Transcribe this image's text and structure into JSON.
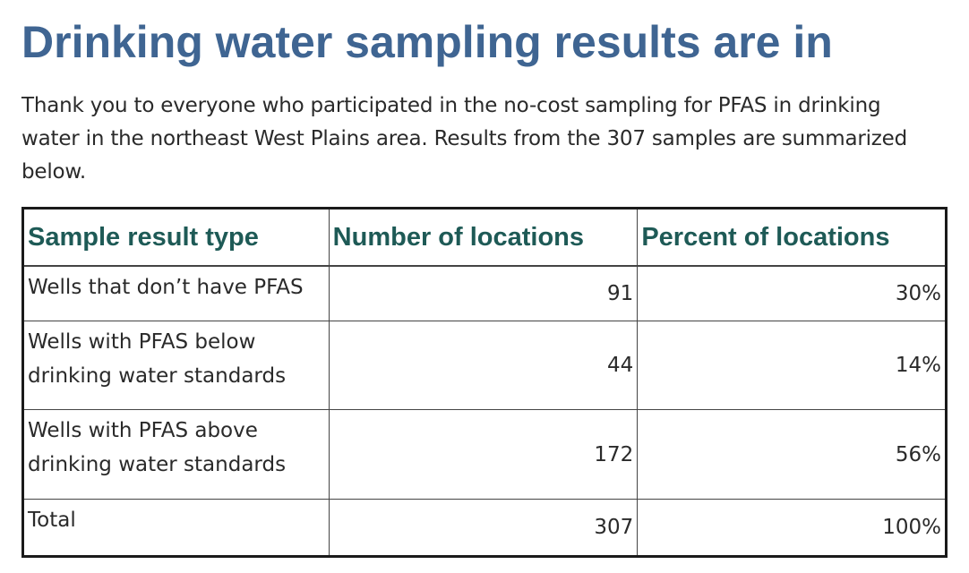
{
  "title": "Drinking water sampling results are in",
  "intro": "Thank you to everyone who participated in the no-cost sampling for PFAS in drinking water in the northeast West Plains area. Results from the 307 samples are summarized below.",
  "table": {
    "headers": [
      "Sample result type",
      "Number of locations",
      "Percent of locations"
    ],
    "rows": [
      {
        "type": "Wells that don’t have PFAS",
        "number": "91",
        "percent": "30%"
      },
      {
        "type": "Wells with PFAS below drinking water standards",
        "number": "44",
        "percent": "14%"
      },
      {
        "type": "Wells with PFAS above drinking water standards",
        "number": "172",
        "percent": "56%"
      },
      {
        "type": "Total",
        "number": "307",
        "percent": "100%"
      }
    ]
  },
  "colors": {
    "title": "#3f6592",
    "table_header": "#1e5a56",
    "body_text": "#2a2a2a"
  }
}
